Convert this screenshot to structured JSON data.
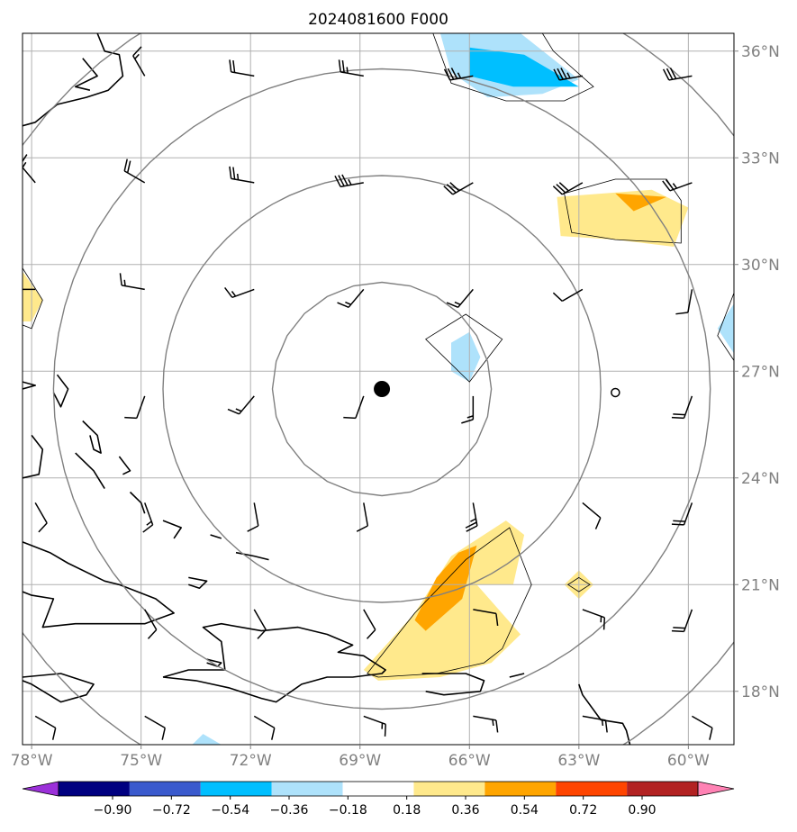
{
  "title": "2024081600 F000",
  "map": {
    "lon_range": [
      -78.25,
      -58.75
    ],
    "lat_range": [
      16.5,
      36.5
    ],
    "lon_ticks": [
      {
        "value": -78,
        "label": "78°W"
      },
      {
        "value": -75,
        "label": "75°W"
      },
      {
        "value": -72,
        "label": "72°W"
      },
      {
        "value": -69,
        "label": "69°W"
      },
      {
        "value": -66,
        "label": "66°W"
      },
      {
        "value": -63,
        "label": "63°W"
      },
      {
        "value": -60,
        "label": "60°W"
      }
    ],
    "lat_ticks": [
      {
        "value": 36,
        "label": "36°N"
      },
      {
        "value": 33,
        "label": "33°N"
      },
      {
        "value": 30,
        "label": "30°N"
      },
      {
        "value": 27,
        "label": "27°N"
      },
      {
        "value": 24,
        "label": "24°N"
      },
      {
        "value": 21,
        "label": "21°N"
      },
      {
        "value": 18,
        "label": "18°N"
      }
    ],
    "center": {
      "lon": -68.4,
      "lat": 26.5
    },
    "range_rings_deg": [
      3,
      6,
      9,
      12
    ],
    "colors": {
      "grid": "#b0b0b0",
      "ring": "#808080",
      "coast": "#000000",
      "axis_text": "#808080"
    }
  },
  "colorbar": {
    "levels": [
      "−0.90",
      "−0.72",
      "−0.54",
      "−0.36",
      "−0.18",
      "0.18",
      "0.36",
      "0.54",
      "0.72",
      "0.90"
    ],
    "colors": [
      "#9b30d9",
      "#000080",
      "#3a5acd",
      "#00bfff",
      "#aee2fb",
      "#ffffff",
      "#ffe98c",
      "#ffa500",
      "#ff4500",
      "#b22222",
      "#ff82b4"
    ]
  },
  "shaded_regions": [
    {
      "level": "0.18-0.36",
      "color": "#ffe98c",
      "lonlat": [
        [
          -68.9,
          18.6
        ],
        [
          -67.5,
          20.2
        ],
        [
          -66.5,
          21.8
        ],
        [
          -65.0,
          22.8
        ],
        [
          -64.5,
          22.4
        ],
        [
          -64.8,
          21.0
        ],
        [
          -65.8,
          21.0
        ],
        [
          -64.6,
          19.6
        ],
        [
          -65.4,
          18.8
        ],
        [
          -66.8,
          18.4
        ],
        [
          -68.5,
          18.3
        ]
      ]
    },
    {
      "level": "0.36-0.54",
      "color": "#ffa500",
      "lonlat": [
        [
          -67.2,
          19.7
        ],
        [
          -66.2,
          20.6
        ],
        [
          -65.8,
          22.1
        ],
        [
          -66.3,
          21.9
        ],
        [
          -66.9,
          21.2
        ],
        [
          -67.5,
          20.0
        ]
      ]
    },
    {
      "level": "0.18-0.36",
      "color": "#ffe98c",
      "lonlat": [
        [
          -63.6,
          31.9
        ],
        [
          -61.0,
          32.1
        ],
        [
          -60.0,
          31.6
        ],
        [
          -60.4,
          30.5
        ],
        [
          -62.0,
          30.7
        ],
        [
          -63.5,
          30.8
        ]
      ]
    },
    {
      "level": "0.36-0.54",
      "color": "#ffa500",
      "lonlat": [
        [
          -62.0,
          32.0
        ],
        [
          -60.6,
          31.9
        ],
        [
          -61.5,
          31.5
        ]
      ]
    },
    {
      "level": "0.18-0.36",
      "color": "#ffe98c",
      "lonlat": [
        [
          -78.25,
          29.8
        ],
        [
          -77.7,
          29.0
        ],
        [
          -78.0,
          28.4
        ],
        [
          -78.25,
          28.4
        ]
      ]
    },
    {
      "level": "0.18-0.36",
      "color": "#ffe98c",
      "lonlat": [
        [
          -63.0,
          21.4
        ],
        [
          -62.6,
          21.0
        ],
        [
          -63.0,
          20.6
        ],
        [
          -63.4,
          21.0
        ]
      ]
    },
    {
      "level": "-0.36--0.18",
      "color": "#aee2fb",
      "lonlat": [
        [
          -66.8,
          36.5
        ],
        [
          -64.6,
          36.5
        ],
        [
          -63.0,
          35.2
        ],
        [
          -64.0,
          34.8
        ],
        [
          -65.5,
          34.7
        ],
        [
          -66.5,
          35.4
        ]
      ]
    },
    {
      "level": "-0.54--0.36",
      "color": "#00bfff",
      "lonlat": [
        [
          -66.0,
          36.1
        ],
        [
          -64.5,
          35.9
        ],
        [
          -63.0,
          35.0
        ],
        [
          -64.8,
          35.0
        ],
        [
          -66.0,
          35.3
        ]
      ]
    },
    {
      "level": "-0.36--0.18",
      "color": "#aee2fb",
      "lonlat": [
        [
          -66.0,
          26.7
        ],
        [
          -65.7,
          27.4
        ],
        [
          -66.0,
          28.1
        ],
        [
          -66.5,
          27.8
        ],
        [
          -66.5,
          27.0
        ]
      ]
    },
    {
      "level": "-0.36--0.18",
      "color": "#aee2fb",
      "lonlat": [
        [
          -58.75,
          28.9
        ],
        [
          -59.2,
          28.2
        ],
        [
          -58.75,
          27.5
        ]
      ]
    },
    {
      "level": "-0.36--0.18",
      "color": "#aee2fb",
      "lonlat": [
        [
          -73.6,
          16.5
        ],
        [
          -73.3,
          16.8
        ],
        [
          -72.8,
          16.5
        ]
      ]
    }
  ],
  "contours": [
    {
      "lonlat": [
        [
          -68.8,
          18.5
        ],
        [
          -67.5,
          20.2
        ],
        [
          -66.1,
          21.7
        ],
        [
          -64.9,
          22.6
        ],
        [
          -64.6,
          21.8
        ],
        [
          -64.3,
          21.0
        ],
        [
          -65.1,
          19.2
        ],
        [
          -65.6,
          18.8
        ],
        [
          -66.9,
          18.5
        ],
        [
          -68.5,
          18.4
        ]
      ]
    },
    {
      "lonlat": [
        [
          -63.4,
          32.0
        ],
        [
          -62.0,
          32.4
        ],
        [
          -60.6,
          32.4
        ],
        [
          -60.2,
          31.8
        ],
        [
          -60.2,
          30.6
        ],
        [
          -62.0,
          30.7
        ],
        [
          -63.2,
          30.9
        ]
      ]
    },
    {
      "lonlat": [
        [
          -67.0,
          36.5
        ],
        [
          -66.5,
          35.1
        ],
        [
          -65.0,
          34.6
        ],
        [
          -63.4,
          34.6
        ],
        [
          -62.6,
          35.0
        ],
        [
          -63.7,
          36.0
        ],
        [
          -64.0,
          36.5
        ]
      ]
    },
    {
      "lonlat": [
        [
          -67.2,
          27.9
        ],
        [
          -66.1,
          28.6
        ],
        [
          -65.1,
          27.9
        ],
        [
          -66.0,
          26.7
        ]
      ]
    },
    {
      "lonlat": [
        [
          -78.25,
          29.9
        ],
        [
          -77.7,
          29.0
        ],
        [
          -78.0,
          28.2
        ],
        [
          -78.25,
          28.3
        ]
      ]
    },
    {
      "lonlat": [
        [
          -58.75,
          29.2
        ],
        [
          -59.2,
          28.0
        ],
        [
          -58.75,
          27.3
        ]
      ]
    },
    {
      "lonlat": [
        [
          -63.0,
          21.2
        ],
        [
          -62.7,
          21.0
        ],
        [
          -63.0,
          20.8
        ],
        [
          -63.3,
          21.0
        ]
      ]
    }
  ],
  "center_marker": {
    "lon": -68.4,
    "lat": 26.5
  },
  "small_circle": {
    "lon": -62.0,
    "lat": 26.4
  },
  "wind_barbs": [
    {
      "lon": -74.9,
      "lat": 35.3,
      "dir": 330,
      "spd": 15
    },
    {
      "lon": -71.9,
      "lat": 35.3,
      "dir": 280,
      "spd": 20
    },
    {
      "lon": -68.9,
      "lat": 35.3,
      "dir": 280,
      "spd": 25
    },
    {
      "lon": -65.9,
      "lat": 35.3,
      "dir": 260,
      "spd": 35
    },
    {
      "lon": -62.9,
      "lat": 35.3,
      "dir": 260,
      "spd": 35
    },
    {
      "lon": -59.9,
      "lat": 35.3,
      "dir": 260,
      "spd": 30
    },
    {
      "lon": -77.9,
      "lat": 32.3,
      "dir": 320,
      "spd": 15
    },
    {
      "lon": -74.9,
      "lat": 32.3,
      "dir": 300,
      "spd": 20
    },
    {
      "lon": -71.9,
      "lat": 32.3,
      "dir": 280,
      "spd": 25
    },
    {
      "lon": -68.9,
      "lat": 32.3,
      "dir": 260,
      "spd": 35
    },
    {
      "lon": -65.9,
      "lat": 32.3,
      "dir": 240,
      "spd": 30
    },
    {
      "lon": -62.9,
      "lat": 32.3,
      "dir": 240,
      "spd": 30
    },
    {
      "lon": -59.9,
      "lat": 32.3,
      "dir": 250,
      "spd": 25
    },
    {
      "lon": -77.9,
      "lat": 29.3,
      "dir": 270,
      "spd": 10
    },
    {
      "lon": -74.9,
      "lat": 29.3,
      "dir": 280,
      "spd": 15
    },
    {
      "lon": -71.9,
      "lat": 29.3,
      "dir": 250,
      "spd": 15
    },
    {
      "lon": -68.9,
      "lat": 29.3,
      "dir": 220,
      "spd": 15
    },
    {
      "lon": -65.9,
      "lat": 29.3,
      "dir": 220,
      "spd": 15
    },
    {
      "lon": -62.9,
      "lat": 29.3,
      "dir": 240,
      "spd": 10
    },
    {
      "lon": -59.9,
      "lat": 29.3,
      "dir": 190,
      "spd": 10
    },
    {
      "lon": -74.9,
      "lat": 26.3,
      "dir": 200,
      "spd": 10
    },
    {
      "lon": -71.9,
      "lat": 26.3,
      "dir": 220,
      "spd": 15
    },
    {
      "lon": -68.9,
      "lat": 26.3,
      "dir": 200,
      "spd": 10
    },
    {
      "lon": -65.9,
      "lat": 26.3,
      "dir": 180,
      "spd": 15
    },
    {
      "lon": -59.9,
      "lat": 26.3,
      "dir": 200,
      "spd": 20
    },
    {
      "lon": -77.9,
      "lat": 23.3,
      "dir": 150,
      "spd": 10
    },
    {
      "lon": -74.9,
      "lat": 23.3,
      "dir": 160,
      "spd": 15
    },
    {
      "lon": -71.9,
      "lat": 23.3,
      "dir": 170,
      "spd": 10
    },
    {
      "lon": -68.9,
      "lat": 23.3,
      "dir": 170,
      "spd": 10
    },
    {
      "lon": -65.9,
      "lat": 23.3,
      "dir": 170,
      "spd": 25
    },
    {
      "lon": -62.9,
      "lat": 23.3,
      "dir": 130,
      "spd": 10
    },
    {
      "lon": -59.9,
      "lat": 23.3,
      "dir": 200,
      "spd": 20
    },
    {
      "lon": -74.9,
      "lat": 20.3,
      "dir": 150,
      "spd": 10
    },
    {
      "lon": -71.9,
      "lat": 20.3,
      "dir": 150,
      "spd": 10
    },
    {
      "lon": -68.9,
      "lat": 20.3,
      "dir": 150,
      "spd": 10
    },
    {
      "lon": -65.9,
      "lat": 20.3,
      "dir": 100,
      "spd": 10
    },
    {
      "lon": -62.9,
      "lat": 20.3,
      "dir": 110,
      "spd": 15
    },
    {
      "lon": -59.9,
      "lat": 20.3,
      "dir": 200,
      "spd": 20
    },
    {
      "lon": -77.9,
      "lat": 17.3,
      "dir": 120,
      "spd": 10
    },
    {
      "lon": -74.9,
      "lat": 17.3,
      "dir": 120,
      "spd": 10
    },
    {
      "lon": -71.9,
      "lat": 17.3,
      "dir": 120,
      "spd": 10
    },
    {
      "lon": -68.9,
      "lat": 17.3,
      "dir": 110,
      "spd": 15
    },
    {
      "lon": -65.9,
      "lat": 17.3,
      "dir": 100,
      "spd": 15
    },
    {
      "lon": -62.9,
      "lat": 17.3,
      "dir": 100,
      "spd": 15
    },
    {
      "lon": -59.9,
      "lat": 17.3,
      "dir": 120,
      "spd": 10
    }
  ],
  "coastlines": [
    {
      "name": "us-east-coast",
      "lonlat": [
        [
          -76.2,
          36.5
        ],
        [
          -76.0,
          36.0
        ],
        [
          -75.6,
          35.9
        ],
        [
          -75.5,
          35.3
        ],
        [
          -75.9,
          34.9
        ],
        [
          -76.5,
          34.7
        ],
        [
          -77.3,
          34.5
        ],
        [
          -77.9,
          34.0
        ],
        [
          -78.25,
          33.9
        ]
      ]
    },
    {
      "name": "pamlico-sound",
      "lonlat": [
        [
          -76.6,
          35.8
        ],
        [
          -76.2,
          35.3
        ],
        [
          -76.8,
          35.0
        ],
        [
          -76.4,
          34.9
        ]
      ]
    },
    {
      "name": "andros",
      "lonlat": [
        [
          -78.0,
          25.2
        ],
        [
          -77.7,
          24.8
        ],
        [
          -77.8,
          24.1
        ],
        [
          -78.25,
          24.0
        ]
      ]
    },
    {
      "name": "great-abaco",
      "lonlat": [
        [
          -77.3,
          26.9
        ],
        [
          -77.0,
          26.5
        ],
        [
          -77.2,
          26.0
        ],
        [
          -77.4,
          26.4
        ]
      ]
    },
    {
      "name": "grand-bahama",
      "lonlat": [
        [
          -78.25,
          26.7
        ],
        [
          -77.9,
          26.6
        ],
        [
          -78.25,
          26.5
        ]
      ]
    },
    {
      "name": "eleuthera",
      "lonlat": [
        [
          -76.6,
          25.6
        ],
        [
          -76.2,
          25.2
        ],
        [
          -76.1,
          24.7
        ],
        [
          -76.3,
          24.8
        ],
        [
          -76.4,
          25.2
        ]
      ]
    },
    {
      "name": "cat-island",
      "lonlat": [
        [
          -75.6,
          24.6
        ],
        [
          -75.3,
          24.2
        ],
        [
          -75.5,
          24.1
        ]
      ]
    },
    {
      "name": "exuma-chain",
      "lonlat": [
        [
          -76.8,
          24.7
        ],
        [
          -76.3,
          24.2
        ],
        [
          -76.0,
          23.7
        ]
      ]
    },
    {
      "name": "long-island",
      "lonlat": [
        [
          -75.3,
          23.6
        ],
        [
          -75.0,
          23.3
        ],
        [
          -74.9,
          23.0
        ]
      ]
    },
    {
      "name": "acklins",
      "lonlat": [
        [
          -74.4,
          22.8
        ],
        [
          -73.9,
          22.6
        ],
        [
          -74.1,
          22.3
        ]
      ]
    },
    {
      "name": "inagua",
      "lonlat": [
        [
          -73.7,
          21.2
        ],
        [
          -73.2,
          21.1
        ],
        [
          -73.4,
          20.9
        ],
        [
          -73.7,
          21.0
        ]
      ]
    },
    {
      "name": "turks-caicos",
      "lonlat": [
        [
          -72.4,
          21.9
        ],
        [
          -71.9,
          21.8
        ],
        [
          -71.5,
          21.7
        ]
      ]
    },
    {
      "name": "mayaguana",
      "lonlat": [
        [
          -73.1,
          22.4
        ],
        [
          -72.8,
          22.3
        ]
      ]
    },
    {
      "name": "cuba",
      "lonlat": [
        [
          -78.25,
          22.2
        ],
        [
          -77.5,
          21.9
        ],
        [
          -77.0,
          21.6
        ],
        [
          -76.0,
          21.1
        ],
        [
          -75.6,
          21.0
        ],
        [
          -74.6,
          20.6
        ],
        [
          -74.1,
          20.2
        ],
        [
          -74.9,
          19.9
        ],
        [
          -75.8,
          19.9
        ],
        [
          -76.8,
          19.9
        ],
        [
          -77.7,
          19.8
        ],
        [
          -77.4,
          20.6
        ],
        [
          -78.0,
          20.7
        ],
        [
          -78.25,
          20.8
        ]
      ]
    },
    {
      "name": "hispaniola",
      "lonlat": [
        [
          -74.4,
          18.4
        ],
        [
          -73.5,
          18.3
        ],
        [
          -72.6,
          18.1
        ],
        [
          -71.7,
          17.8
        ],
        [
          -71.3,
          17.7
        ],
        [
          -70.6,
          18.2
        ],
        [
          -69.9,
          18.4
        ],
        [
          -69.2,
          18.4
        ],
        [
          -68.4,
          18.5
        ],
        [
          -68.3,
          18.6
        ],
        [
          -68.9,
          19.0
        ],
        [
          -69.6,
          19.1
        ],
        [
          -69.2,
          19.3
        ],
        [
          -69.9,
          19.6
        ],
        [
          -70.7,
          19.8
        ],
        [
          -71.7,
          19.7
        ],
        [
          -72.8,
          19.9
        ],
        [
          -73.3,
          19.8
        ],
        [
          -72.8,
          19.4
        ],
        [
          -72.7,
          18.6
        ],
        [
          -73.7,
          18.6
        ],
        [
          -74.4,
          18.4
        ]
      ]
    },
    {
      "name": "gonave",
      "lonlat": [
        [
          -73.2,
          18.9
        ],
        [
          -72.8,
          18.8
        ],
        [
          -72.9,
          18.7
        ],
        [
          -73.2,
          18.8
        ]
      ]
    },
    {
      "name": "jamaica",
      "lonlat": [
        [
          -78.25,
          18.4
        ],
        [
          -77.2,
          18.5
        ],
        [
          -76.3,
          18.2
        ],
        [
          -76.5,
          17.9
        ],
        [
          -77.2,
          17.7
        ],
        [
          -78.0,
          18.2
        ],
        [
          -78.25,
          18.3
        ]
      ]
    },
    {
      "name": "puerto-rico",
      "lonlat": [
        [
          -67.3,
          18.5
        ],
        [
          -66.1,
          18.5
        ],
        [
          -65.6,
          18.3
        ],
        [
          -65.7,
          18.0
        ],
        [
          -66.7,
          17.9
        ],
        [
          -67.2,
          18.0
        ]
      ]
    },
    {
      "name": "virgin-islands",
      "lonlat": [
        [
          -64.9,
          18.4
        ],
        [
          -64.5,
          18.5
        ]
      ]
    },
    {
      "name": "leeward-islands",
      "lonlat": [
        [
          -63.0,
          18.2
        ],
        [
          -62.9,
          17.9
        ],
        [
          -62.4,
          17.2
        ],
        [
          -61.8,
          17.1
        ],
        [
          -61.7,
          16.9
        ],
        [
          -61.6,
          16.5
        ]
      ]
    }
  ]
}
